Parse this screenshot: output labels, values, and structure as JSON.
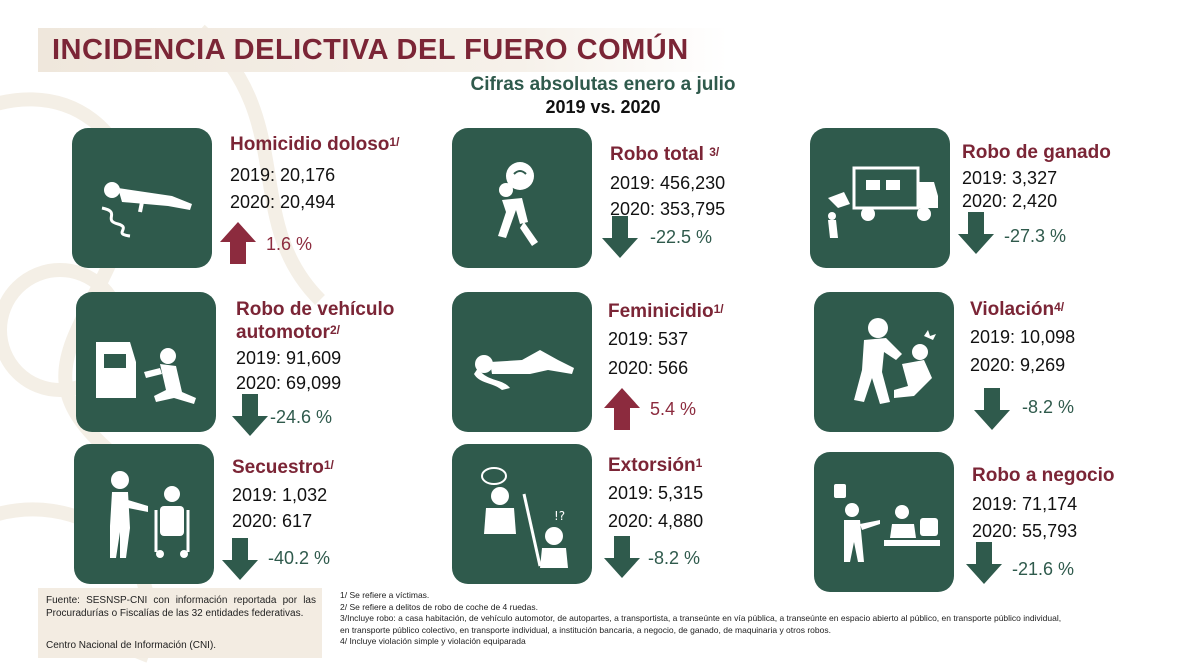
{
  "title": "INCIDENCIA DELICTIVA DEL FUERO COMÚN",
  "subtitle": "Cifras absolutas enero a julio",
  "subtitle2": "2019 vs. 2020",
  "colors": {
    "green": "#2f5a4c",
    "maroon": "#7b2536",
    "up_arrow": "#8c2b3e"
  },
  "cards": [
    {
      "title": "Homicidio doloso",
      "note": "1/",
      "title2": "",
      "line2019": "2019: 20,176",
      "line2020": "2020: 20,494",
      "change": "1.6 %",
      "direction": "up",
      "icon": "body-on-ground-icon"
    },
    {
      "title": "Robo total",
      "note": "3/",
      "title2": "",
      "line2019": "2019: 456,230",
      "line2020": "2020: 353,795",
      "change": "-22.5 %",
      "direction": "down",
      "icon": "thief-with-bag-icon"
    },
    {
      "title": "Robo de ganado",
      "note": "",
      "title2": "",
      "line2019": "2019: 3,327",
      "line2020": "2020: 2,420",
      "change": "-27.3 %",
      "direction": "down",
      "icon": "cattle-truck-icon"
    },
    {
      "title": "Robo de vehículo",
      "note": "",
      "title2": "automotor",
      "note2": "2/",
      "line2019": "2019: 91,609",
      "line2020": "2020: 69,099",
      "change": "-24.6 %",
      "direction": "down",
      "icon": "car-theft-icon"
    },
    {
      "title": "Feminicidio",
      "note": "1/",
      "title2": "",
      "line2019": "2019: 537",
      "line2020": "2020: 566",
      "change": "5.4 %",
      "direction": "up",
      "icon": "woman-on-ground-icon"
    },
    {
      "title": "Violación",
      "note": "4/",
      "title2": "",
      "line2019": "2019: 10,098",
      "line2020": "2020: 9,269",
      "change": "-8.2 %",
      "direction": "down",
      "icon": "assault-icon"
    },
    {
      "title": "Secuestro",
      "note": "1/",
      "title2": "",
      "line2019": "2019: 1,032",
      "line2020": "2020: 617",
      "change": "-40.2 %",
      "direction": "down",
      "icon": "kidnapping-icon"
    },
    {
      "title": "Extorsión",
      "note": "1",
      "title2": "",
      "line2019": "2019: 5,315",
      "line2020": "2020: 4,880",
      "change": "-8.2 %",
      "direction": "down",
      "icon": "extortion-call-icon"
    },
    {
      "title": "Robo a negocio",
      "note": "",
      "title2": "",
      "line2019": "2019: 71,174",
      "line2020": "2020: 55,793",
      "change": "-21.6 %",
      "direction": "down",
      "icon": "business-robbery-icon"
    }
  ],
  "footer": {
    "source": "Fuente: SESNSP-CNI con información reportada por las Procuradurías o Fiscalías de las 32 entidades federativas.",
    "cni": "Centro Nacional de Información (CNI).",
    "notes": [
      "1/ Se refiere a víctimas.",
      "2/ Se refiere a delitos de robo de coche de 4 ruedas.",
      "3/Incluye robo: a casa habitación, de vehículo automotor, de autopartes, a transportista, a transeúnte en vía pública, a transeúnte en espacio abierto al público, en transporte público individual,",
      "en transporte público colectivo, en transporte individual, a institución bancaria, a negocio, de ganado, de maquinaria y otros robos.",
      "4/ Incluye violación simple y violación equiparada"
    ]
  }
}
